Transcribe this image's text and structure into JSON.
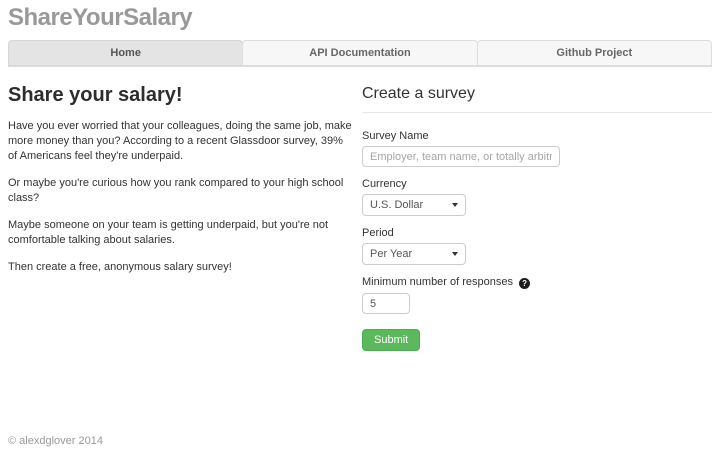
{
  "page": {
    "title": "ShareYourSalary",
    "footer": "© alexdglover 2014"
  },
  "tabs": [
    {
      "label": "Home",
      "active": true
    },
    {
      "label": "API Documentation",
      "active": false
    },
    {
      "label": "Github Project",
      "active": false
    }
  ],
  "intro": {
    "heading": "Share your salary!",
    "paragraphs": [
      "Have you ever worried that your colleagues, doing the same job, make more money than you? According to a recent Glassdoor survey, 39% of Americans feel they're underpaid.",
      "Or maybe you're curious how you rank compared to your high school class?",
      "Maybe someone on your team is getting underpaid, but you're not comfortable talking about salaries.",
      "Then create a free, anonymous salary survey!"
    ]
  },
  "form": {
    "heading": "Create a survey",
    "survey_name": {
      "label": "Survey Name",
      "placeholder": "Employer, team name, or totally arbitratry",
      "value": ""
    },
    "currency": {
      "label": "Currency",
      "selected": "U.S. Dollar"
    },
    "period": {
      "label": "Period",
      "selected": "Per Year"
    },
    "min_responses": {
      "label": "Minimum number of responses",
      "value": "5"
    },
    "submit_label": "Submit"
  },
  "icons": {
    "help_question_mark": "?"
  },
  "colors": {
    "accent_green": "#5cb85c",
    "accent_green_border": "#4cae4c",
    "title_gray": "#999999",
    "text_dark": "#333333",
    "muted": "#999999",
    "border_light": "#dddddd",
    "tab_active_bg": "#e4e4e4",
    "tab_inactive_bg": "#f7f7f7"
  }
}
